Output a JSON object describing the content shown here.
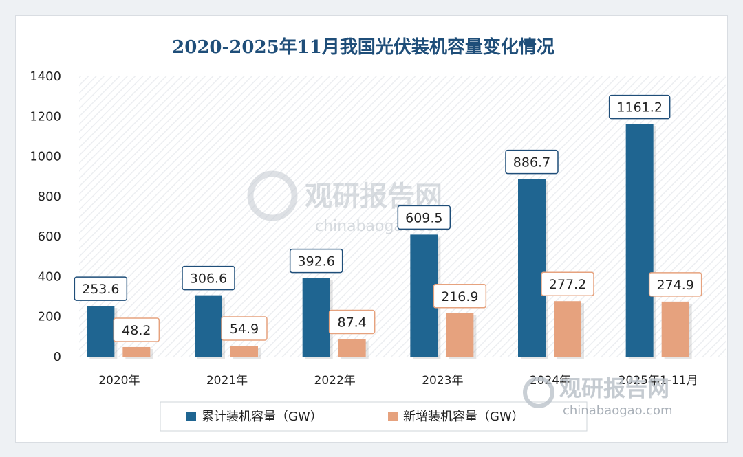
{
  "chart_data": {
    "type": "bar",
    "title": "2020-2025年11月我国光伏装机容量变化情况",
    "categories": [
      "2020年",
      "2021年",
      "2022年",
      "2023年",
      "2024年",
      "2025年1-11月"
    ],
    "series": [
      {
        "name": "累计装机容量（GW）",
        "values": [
          253.6,
          306.6,
          392.6,
          609.5,
          886.7,
          1161.2
        ],
        "color": "#1f6591"
      },
      {
        "name": "新增装机容量（GW）",
        "values": [
          48.2,
          54.9,
          87.4,
          216.9,
          277.2,
          274.9
        ],
        "color": "#e6a27e"
      }
    ],
    "ylim": [
      0,
      1400
    ],
    "yticks": [
      0,
      200,
      400,
      600,
      800,
      1000,
      1200,
      1400
    ],
    "grid": false,
    "legend": "bottom",
    "plot_background": "diagonal-hatch"
  },
  "watermark": {
    "brand": "观研报告网",
    "url": "chinabaogao.com"
  }
}
